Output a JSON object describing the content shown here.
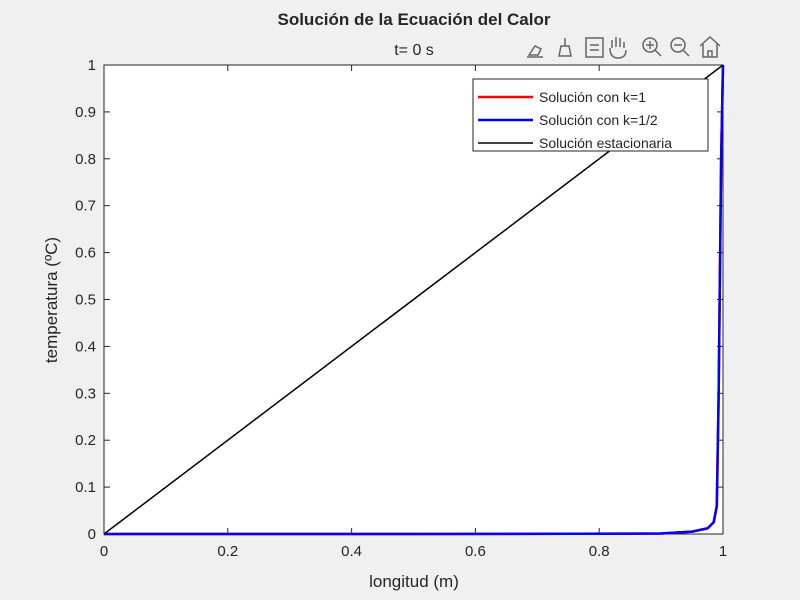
{
  "toolbar": {
    "icons": [
      "data-tips-icon",
      "brush-icon",
      "legend-icon",
      "pan-icon",
      "zoom-in-icon",
      "zoom-out-icon",
      "home-icon"
    ]
  },
  "chart_data": {
    "type": "line",
    "title": "Solución de la Ecuación del Calor",
    "subtitle": "t= 0 s",
    "xlabel": "longitud (m)",
    "ylabel": "temperatura (ºC)",
    "xlim": [
      0,
      1
    ],
    "ylim": [
      0,
      1
    ],
    "xticks": [
      "0",
      "0.2",
      "0.4",
      "0.6",
      "0.8",
      "1"
    ],
    "yticks": [
      "0",
      "0.1",
      "0.2",
      "0.3",
      "0.4",
      "0.5",
      "0.6",
      "0.7",
      "0.8",
      "0.9",
      "1"
    ],
    "grid": false,
    "legend_position": "top-right",
    "series": [
      {
        "name": "Solución con k=1",
        "color": "#ff0000",
        "x": [
          0,
          0.5,
          0.9,
          0.95,
          0.975,
          0.985,
          0.99,
          0.993,
          0.997,
          1
        ],
        "y": [
          0,
          0,
          0.001,
          0.005,
          0.012,
          0.025,
          0.06,
          0.3,
          0.8,
          1
        ]
      },
      {
        "name": "Solución con k=1/2",
        "color": "#0000ff",
        "x": [
          0,
          0.5,
          0.9,
          0.95,
          0.975,
          0.985,
          0.99,
          0.993,
          0.997,
          1
        ],
        "y": [
          0,
          0,
          0.001,
          0.005,
          0.012,
          0.025,
          0.06,
          0.3,
          0.8,
          1
        ]
      },
      {
        "name": "Solución estacionaria",
        "color": "#000000",
        "x": [
          0,
          1
        ],
        "y": [
          0,
          1
        ]
      }
    ]
  }
}
